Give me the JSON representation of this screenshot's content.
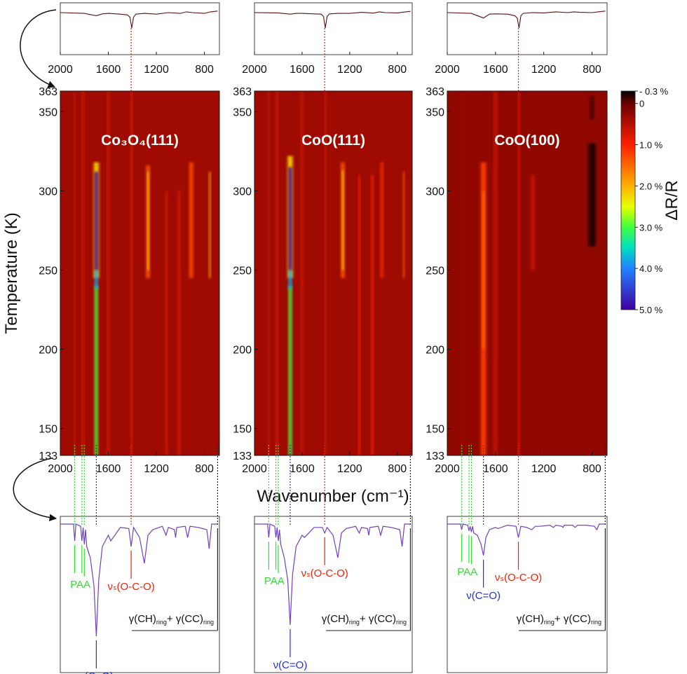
{
  "figure": {
    "xlabel": "Wavenumber (cm⁻¹)",
    "ylabel": "Temperature (K)",
    "colorbar": {
      "label": "ΔR/R",
      "clim": [
        -0.3,
        5
      ],
      "ticks": [
        {
          "value": -0.3,
          "label": "- 0.3 %"
        },
        0,
        {
          "value": 1,
          "label": "1.0 %"
        },
        {
          "value": 2,
          "label": "2.0 %"
        },
        {
          "value": 3,
          "label": "3.0 %"
        },
        {
          "value": 4,
          "label": "4.0 %"
        },
        {
          "value": 5,
          "label": "5.0 %"
        }
      ],
      "colorscale": [
        [
          -0.3,
          "#000000"
        ],
        [
          0,
          "#6b0000"
        ],
        [
          1,
          "#ff2000"
        ],
        [
          2,
          "#ffb000"
        ],
        [
          2.5,
          "#e8ff00"
        ],
        [
          3,
          "#40ff40"
        ],
        [
          3.5,
          "#00e0c0"
        ],
        [
          4,
          "#2080ff"
        ],
        [
          5,
          "#4000a0"
        ]
      ]
    }
  },
  "chart_data": [
    {
      "type": "heatmap",
      "title": "Co₃O₄(111)",
      "xlim": [
        2000,
        675
      ],
      "xticks": [
        2000,
        1600,
        1200,
        800
      ],
      "ylim": [
        133,
        363
      ],
      "yticks": [
        133,
        150,
        200,
        250,
        300,
        350,
        363
      ],
      "background": 0.35,
      "bands": [
        {
          "x": 1700,
          "width": 40,
          "tmin": 245,
          "tmax": 318,
          "value": 2.2
        },
        {
          "x": 1700,
          "width": 26,
          "tmin": 133,
          "tmax": 240,
          "value": 3.0
        },
        {
          "x": 1700,
          "width": 26,
          "tmin": 238,
          "tmax": 250,
          "value": 3.8
        },
        {
          "x": 1700,
          "width": 28,
          "tmin": 250,
          "tmax": 312,
          "value": 5.0
        },
        {
          "x": 1405,
          "width": 12,
          "tmin": 133,
          "tmax": 363,
          "value": 1.0
        },
        {
          "x": 1270,
          "width": 28,
          "tmin": 245,
          "tmax": 316,
          "value": 1.4
        },
        {
          "x": 1270,
          "width": 12,
          "tmin": 250,
          "tmax": 312,
          "value": 2.4
        },
        {
          "x": 1880,
          "width": 12,
          "tmin": 133,
          "tmax": 363,
          "value": 0.7
        },
        {
          "x": 1810,
          "width": 16,
          "tmin": 133,
          "tmax": 363,
          "value": 0.8
        },
        {
          "x": 1600,
          "width": 20,
          "tmin": 133,
          "tmax": 363,
          "value": 0.7
        },
        {
          "x": 1115,
          "width": 14,
          "tmin": 133,
          "tmax": 300,
          "value": 0.9
        },
        {
          "x": 1010,
          "width": 16,
          "tmin": 133,
          "tmax": 300,
          "value": 0.9
        },
        {
          "x": 910,
          "width": 30,
          "tmin": 245,
          "tmax": 318,
          "value": 1.3
        },
        {
          "x": 755,
          "width": 14,
          "tmin": 245,
          "tmax": 312,
          "value": 2.0
        }
      ],
      "top_spectrum": {
        "color": "#5a1010",
        "x": [
          2000,
          1800,
          1700,
          1650,
          1600,
          1500,
          1440,
          1420,
          1405,
          1390,
          1370,
          1300,
          1200,
          1100,
          1000,
          950,
          900,
          800,
          750,
          690
        ],
        "values": [
          0,
          -0.05,
          -0.2,
          -0.08,
          -0.05,
          -0.1,
          -0.15,
          -0.3,
          -1.0,
          -0.3,
          -0.1,
          -0.05,
          -0.1,
          0,
          -0.05,
          0.05,
          0,
          -0.05,
          0.05,
          0.1
        ]
      },
      "bottom_spectrum": {
        "color": "#7040c0",
        "x": [
          2000,
          1890,
          1880,
          1870,
          1830,
          1820,
          1810,
          1800,
          1790,
          1780,
          1750,
          1720,
          1700,
          1680,
          1650,
          1600,
          1580,
          1500,
          1430,
          1410,
          1390,
          1340,
          1300,
          1270,
          1230,
          1150,
          1120,
          1100,
          1050,
          1040,
          1030,
          960,
          940,
          920,
          850,
          780,
          760,
          740,
          690
        ],
        "values": [
          0,
          0,
          -0.15,
          0,
          -0.02,
          -0.15,
          -0.03,
          -0.18,
          -0.05,
          -0.2,
          -0.3,
          -0.55,
          -1.0,
          -0.5,
          -0.2,
          -0.1,
          -0.15,
          -0.03,
          -0.04,
          -0.2,
          -0.03,
          -0.12,
          -0.35,
          -0.1,
          -0.05,
          -0.02,
          -0.1,
          -0.03,
          -0.05,
          -0.12,
          -0.03,
          -0.02,
          -0.12,
          -0.02,
          -0.03,
          -0.05,
          -0.22,
          0,
          0
        ]
      },
      "annotations": [
        {
          "label": "PAA",
          "color": "#33dd33",
          "x": [
            1880,
            1820,
            1800
          ]
        },
        {
          "label": "ν(C=O)",
          "color": "#2233cc",
          "x": [
            1700
          ]
        },
        {
          "label": "νₛ(O-C-O)",
          "color": "#ee2200",
          "x": [
            1410
          ]
        },
        {
          "label": [
            "γ(CH)",
            "ring",
            "+ γ(CC)",
            "ring"
          ],
          "color": "#222222",
          "x": [
            690
          ]
        }
      ]
    },
    {
      "type": "heatmap",
      "title": "CoO(111)",
      "xlim": [
        2000,
        675
      ],
      "xticks": [
        2000,
        1600,
        1200,
        800
      ],
      "ylim": [
        133,
        363
      ],
      "yticks": [
        133,
        150,
        200,
        250,
        300,
        350,
        363
      ],
      "background": 0.35,
      "bands": [
        {
          "x": 1700,
          "width": 40,
          "tmin": 245,
          "tmax": 322,
          "value": 2.2
        },
        {
          "x": 1700,
          "width": 26,
          "tmin": 133,
          "tmax": 240,
          "value": 3.0
        },
        {
          "x": 1700,
          "width": 26,
          "tmin": 238,
          "tmax": 250,
          "value": 3.8
        },
        {
          "x": 1700,
          "width": 28,
          "tmin": 250,
          "tmax": 315,
          "value": 5.0
        },
        {
          "x": 1405,
          "width": 12,
          "tmin": 133,
          "tmax": 363,
          "value": 0.8
        },
        {
          "x": 1258,
          "width": 28,
          "tmin": 245,
          "tmax": 318,
          "value": 1.4
        },
        {
          "x": 1258,
          "width": 12,
          "tmin": 250,
          "tmax": 313,
          "value": 2.4
        },
        {
          "x": 1880,
          "width": 12,
          "tmin": 133,
          "tmax": 363,
          "value": 0.7
        },
        {
          "x": 1810,
          "width": 16,
          "tmin": 133,
          "tmax": 363,
          "value": 0.8
        },
        {
          "x": 1600,
          "width": 20,
          "tmin": 133,
          "tmax": 363,
          "value": 0.7
        },
        {
          "x": 1120,
          "width": 14,
          "tmin": 133,
          "tmax": 310,
          "value": 1.0
        },
        {
          "x": 1010,
          "width": 16,
          "tmin": 133,
          "tmax": 310,
          "value": 1.0
        },
        {
          "x": 930,
          "width": 20,
          "tmin": 245,
          "tmax": 318,
          "value": 1.1
        },
        {
          "x": 745,
          "width": 14,
          "tmin": 245,
          "tmax": 312,
          "value": 1.4
        }
      ],
      "top_spectrum": {
        "color": "#5a1010",
        "x": [
          2000,
          1800,
          1700,
          1650,
          1600,
          1500,
          1440,
          1420,
          1405,
          1390,
          1370,
          1300,
          1200,
          1100,
          1000,
          950,
          900,
          800,
          750,
          690
        ],
        "values": [
          0,
          -0.02,
          -0.1,
          -0.05,
          -0.05,
          -0.08,
          -0.1,
          -0.25,
          -1.0,
          -0.25,
          -0.08,
          -0.05,
          -0.05,
          0.02,
          -0.03,
          0.05,
          0,
          -0.02,
          0.03,
          0.08
        ]
      },
      "bottom_spectrum": {
        "color": "#7040c0",
        "x": [
          2000,
          1890,
          1880,
          1870,
          1830,
          1820,
          1810,
          1800,
          1790,
          1780,
          1750,
          1720,
          1700,
          1680,
          1650,
          1600,
          1580,
          1500,
          1430,
          1410,
          1390,
          1340,
          1300,
          1270,
          1230,
          1150,
          1120,
          1100,
          1050,
          1040,
          1030,
          960,
          940,
          920,
          850,
          780,
          760,
          740,
          690
        ],
        "values": [
          0,
          0,
          -0.12,
          0,
          -0.02,
          -0.12,
          -0.03,
          -0.15,
          -0.05,
          -0.18,
          -0.3,
          -0.5,
          -0.9,
          -0.45,
          -0.2,
          -0.1,
          -0.12,
          -0.03,
          -0.03,
          -0.08,
          -0.03,
          -0.1,
          -0.3,
          -0.08,
          -0.04,
          -0.02,
          -0.08,
          -0.03,
          -0.04,
          -0.1,
          -0.03,
          -0.02,
          -0.1,
          -0.02,
          -0.03,
          -0.05,
          -0.2,
          0,
          0
        ]
      },
      "annotations": [
        {
          "label": "PAA",
          "color": "#33dd33",
          "x": [
            1880,
            1820,
            1800
          ]
        },
        {
          "label": "ν(C=O)",
          "color": "#2233cc",
          "x": [
            1700
          ]
        },
        {
          "label": "νₛ(O-C-O)",
          "color": "#ee2200",
          "x": [
            1410
          ]
        },
        {
          "label": [
            "γ(CH)",
            "ring",
            "+ γ(CC)",
            "ring"
          ],
          "color": "#222222",
          "x": [
            690
          ]
        }
      ]
    },
    {
      "type": "heatmap",
      "title": "CoO(100)",
      "xlim": [
        2000,
        675
      ],
      "xticks": [
        2000,
        1600,
        1200,
        800
      ],
      "ylim": [
        133,
        363
      ],
      "yticks": [
        133,
        150,
        200,
        250,
        300,
        350,
        363
      ],
      "background": 0.25,
      "bands": [
        {
          "x": 1700,
          "width": 40,
          "tmin": 133,
          "tmax": 318,
          "value": 1.2
        },
        {
          "x": 1700,
          "width": 18,
          "tmin": 200,
          "tmax": 300,
          "value": 1.5
        },
        {
          "x": 1405,
          "width": 12,
          "tmin": 133,
          "tmax": 363,
          "value": 1.0
        },
        {
          "x": 1600,
          "width": 30,
          "tmin": 133,
          "tmax": 363,
          "value": 0.6
        },
        {
          "x": 1290,
          "width": 25,
          "tmin": 250,
          "tmax": 310,
          "value": 0.7
        },
        {
          "x": 800,
          "width": 60,
          "tmin": 265,
          "tmax": 330,
          "value": -0.2
        },
        {
          "x": 800,
          "width": 30,
          "tmin": 345,
          "tmax": 360,
          "value": -0.1
        },
        {
          "x": 1880,
          "width": 10,
          "tmin": 133,
          "tmax": 363,
          "value": 0.5
        }
      ],
      "top_spectrum": {
        "color": "#5a1010",
        "x": [
          2000,
          1800,
          1700,
          1650,
          1600,
          1500,
          1440,
          1420,
          1405,
          1390,
          1370,
          1300,
          1200,
          1100,
          1000,
          950,
          900,
          800,
          750,
          690
        ],
        "values": [
          0,
          -0.05,
          -0.35,
          -0.1,
          -0.08,
          -0.1,
          -0.2,
          -0.35,
          -1.0,
          -0.2,
          -0.05,
          0,
          -0.02,
          0.05,
          0,
          0.05,
          0.02,
          0,
          0.05,
          0.1
        ]
      },
      "bottom_spectrum": {
        "color": "#7040c0",
        "x": [
          2000,
          1890,
          1880,
          1870,
          1830,
          1820,
          1810,
          1800,
          1790,
          1780,
          1750,
          1720,
          1700,
          1680,
          1650,
          1600,
          1580,
          1500,
          1430,
          1410,
          1390,
          1340,
          1300,
          1270,
          1230,
          1150,
          1120,
          1100,
          1050,
          1040,
          1030,
          960,
          940,
          920,
          850,
          780,
          760,
          740,
          690
        ],
        "values": [
          0,
          0,
          -0.05,
          0,
          -0.01,
          -0.06,
          -0.02,
          -0.07,
          -0.02,
          -0.08,
          -0.1,
          -0.18,
          -0.28,
          -0.12,
          -0.05,
          -0.03,
          -0.04,
          -0.01,
          -0.02,
          -0.12,
          -0.02,
          -0.03,
          -0.05,
          -0.02,
          -0.02,
          -0.01,
          -0.03,
          -0.01,
          -0.02,
          -0.03,
          -0.01,
          -0.01,
          -0.03,
          -0.01,
          -0.01,
          -0.02,
          -0.05,
          0,
          0
        ]
      },
      "annotations": [
        {
          "label": "PAA",
          "color": "#33dd33",
          "x": [
            1880,
            1820,
            1800
          ]
        },
        {
          "label": "ν(C=O)",
          "color": "#2233cc",
          "x": [
            1700
          ]
        },
        {
          "label": "νₛ(O-C-O)",
          "color": "#ee2200",
          "x": [
            1410
          ]
        },
        {
          "label": [
            "γ(CH)",
            "ring",
            "+ γ(CC)",
            "ring"
          ],
          "color": "#222222",
          "x": [
            690
          ]
        }
      ]
    }
  ]
}
